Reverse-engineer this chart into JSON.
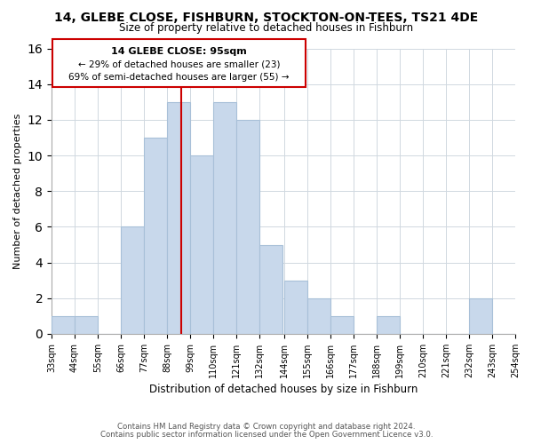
{
  "title": "14, GLEBE CLOSE, FISHBURN, STOCKTON-ON-TEES, TS21 4DE",
  "subtitle": "Size of property relative to detached houses in Fishburn",
  "xlabel": "Distribution of detached houses by size in Fishburn",
  "ylabel": "Number of detached properties",
  "bar_edges": [
    33,
    44,
    55,
    66,
    77,
    88,
    99,
    110,
    121,
    132,
    144,
    155,
    166,
    177,
    188,
    199,
    210,
    221,
    232,
    243,
    254
  ],
  "bar_heights": [
    1,
    1,
    0,
    6,
    11,
    13,
    10,
    13,
    12,
    5,
    3,
    2,
    1,
    0,
    1,
    0,
    0,
    0,
    2,
    0
  ],
  "bar_color": "#c8d8eb",
  "bar_edge_color": "#a8c0d8",
  "reference_line_x": 95,
  "reference_line_color": "#cc0000",
  "ylim": [
    0,
    16
  ],
  "yticks": [
    0,
    2,
    4,
    6,
    8,
    10,
    12,
    14,
    16
  ],
  "tick_labels": [
    "33sqm",
    "44sqm",
    "55sqm",
    "66sqm",
    "77sqm",
    "88sqm",
    "99sqm",
    "110sqm",
    "121sqm",
    "132sqm",
    "144sqm",
    "155sqm",
    "166sqm",
    "177sqm",
    "188sqm",
    "199sqm",
    "210sqm",
    "221sqm",
    "232sqm",
    "243sqm",
    "254sqm"
  ],
  "annotation_title": "14 GLEBE CLOSE: 95sqm",
  "annotation_line1": "← 29% of detached houses are smaller (23)",
  "annotation_line2": "69% of semi-detached houses are larger (55) →",
  "footer1": "Contains HM Land Registry data © Crown copyright and database right 2024.",
  "footer2": "Contains public sector information licensed under the Open Government Licence v3.0.",
  "background_color": "#ffffff",
  "grid_color": "#d0d8e0"
}
